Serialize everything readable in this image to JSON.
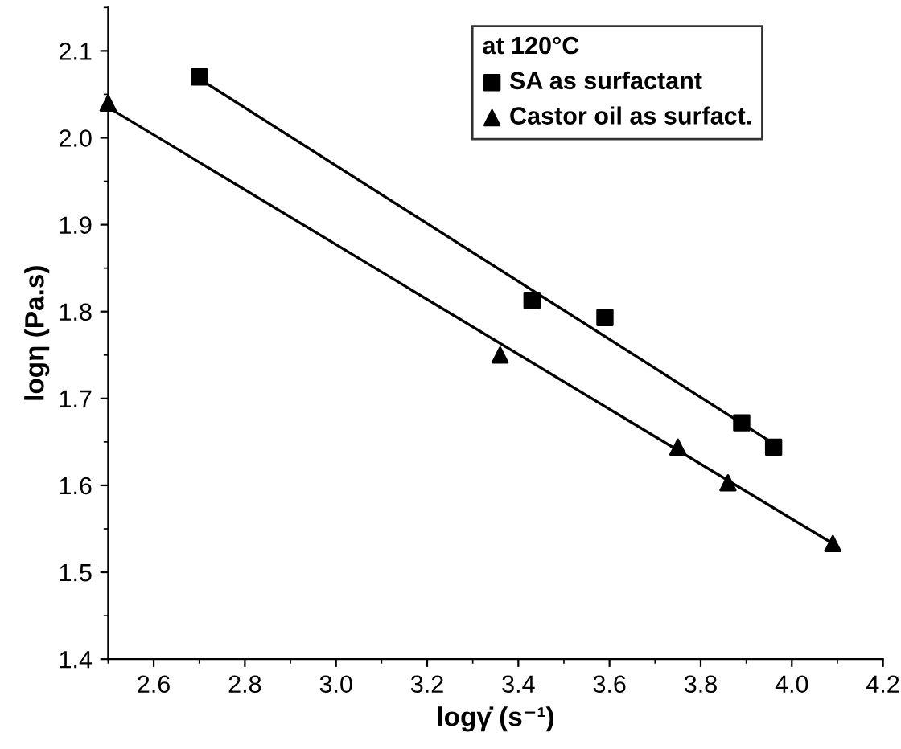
{
  "chart_data": {
    "type": "scatter",
    "xlabel": "logγ̇ (s⁻¹)",
    "ylabel": "logη (Pa.s)",
    "legend_title": "at 120°C",
    "legend": "top right",
    "grid": false,
    "xlim": [
      2.5,
      4.2
    ],
    "xticks": [
      2.6,
      2.8,
      {
        "value": 3,
        "label": "3.0"
      },
      3.2,
      3.4,
      3.6,
      3.8,
      {
        "value": 4,
        "label": "4.0"
      },
      4.2
    ],
    "ylim": [
      1.4,
      2.15
    ],
    "yticks": [
      1.4,
      1.5,
      1.6,
      1.7,
      1.8,
      1.9,
      {
        "value": 2,
        "label": "2.0"
      },
      2.1
    ],
    "series": [
      {
        "name": "SA as surfactant",
        "marker": "square",
        "color": "#000000",
        "x": [
          2.7,
          3.43,
          3.59,
          3.89,
          3.96
        ],
        "values": [
          2.07,
          1.813,
          1.793,
          1.672,
          1.644
        ]
      },
      {
        "name": "Castor oil as surfact.",
        "marker": "triangle",
        "color": "#000000",
        "x": [
          2.5,
          3.36,
          3.75,
          3.86,
          4.09
        ],
        "values": [
          2.04,
          1.75,
          1.644,
          1.603,
          1.533
        ]
      },
      {
        "type": "line",
        "marker": "none",
        "line_style": "solid",
        "color": "#000000",
        "x": [
          2.7,
          3.96
        ],
        "values": [
          2.068,
          1.648
        ]
      },
      {
        "type": "line",
        "marker": "none",
        "line_style": "solid",
        "color": "#000000",
        "x": [
          2.5,
          4.09
        ],
        "values": [
          2.035,
          1.533
        ]
      }
    ]
  }
}
